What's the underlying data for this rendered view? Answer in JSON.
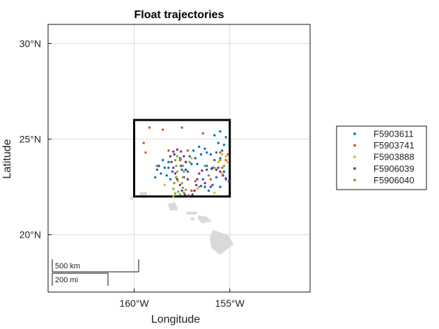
{
  "chart_data": {
    "type": "scatter",
    "title": "Float trajectories",
    "xlabel": "Longitude",
    "ylabel": "Latitude",
    "xlim": [
      -164.5,
      -150.8
    ],
    "ylim": [
      17,
      31
    ],
    "x_ticks": [
      -160,
      -155
    ],
    "x_tick_labels": [
      "160°W",
      "155°W"
    ],
    "y_ticks": [
      20,
      25,
      30
    ],
    "y_tick_labels": [
      "20°N",
      "25°N",
      "30°N"
    ],
    "grid": true,
    "legend": "right",
    "region_box": {
      "lon": [
        -160,
        -155
      ],
      "lat": [
        22,
        26
      ]
    },
    "scale_bar": {
      "km_label": "500 km",
      "mi_label": "200 mi"
    },
    "islands": [
      {
        "name": "Kauai",
        "polygon": [
          [
            -159.75,
            22.2
          ],
          [
            -159.35,
            22.25
          ],
          [
            -159.3,
            21.95
          ],
          [
            -159.6,
            21.9
          ]
        ]
      },
      {
        "name": "Niihau",
        "polygon": [
          [
            -160.2,
            22.0
          ],
          [
            -160.05,
            22.0
          ],
          [
            -160.05,
            21.8
          ],
          [
            -160.2,
            21.85
          ]
        ]
      },
      {
        "name": "Oahu",
        "polygon": [
          [
            -158.25,
            21.6
          ],
          [
            -157.85,
            21.7
          ],
          [
            -157.7,
            21.3
          ],
          [
            -158.1,
            21.25
          ]
        ]
      },
      {
        "name": "Molokai",
        "polygon": [
          [
            -157.3,
            21.2
          ],
          [
            -156.7,
            21.2
          ],
          [
            -156.75,
            21.05
          ],
          [
            -157.25,
            21.05
          ]
        ]
      },
      {
        "name": "Maui",
        "polygon": [
          [
            -156.7,
            21.0
          ],
          [
            -156.2,
            20.95
          ],
          [
            -155.95,
            20.7
          ],
          [
            -156.45,
            20.6
          ],
          [
            -156.65,
            20.8
          ]
        ]
      },
      {
        "name": "Lanai",
        "polygon": [
          [
            -157.05,
            20.9
          ],
          [
            -156.85,
            20.9
          ],
          [
            -156.85,
            20.75
          ],
          [
            -157.05,
            20.75
          ]
        ]
      },
      {
        "name": "Hawaii",
        "polygon": [
          [
            -155.9,
            20.25
          ],
          [
            -155.1,
            20.0
          ],
          [
            -154.8,
            19.5
          ],
          [
            -155.5,
            18.95
          ],
          [
            -155.95,
            19.3
          ],
          [
            -156.05,
            19.8
          ]
        ]
      }
    ],
    "series": [
      {
        "name": "F5903611",
        "color": "#0072bd",
        "points": [
          [
            -158.6,
            23.2
          ],
          [
            -158.4,
            23.5
          ],
          [
            -158.2,
            23.8
          ],
          [
            -158.5,
            23.9
          ],
          [
            -158.7,
            23.6
          ],
          [
            -158.3,
            23.1
          ],
          [
            -158.1,
            22.9
          ],
          [
            -157.8,
            23.0
          ],
          [
            -157.5,
            23.4
          ],
          [
            -157.3,
            23.8
          ],
          [
            -157.1,
            24.1
          ],
          [
            -156.9,
            24.4
          ],
          [
            -156.6,
            24.6
          ],
          [
            -156.3,
            24.5
          ],
          [
            -156.0,
            24.2
          ],
          [
            -155.8,
            23.9
          ],
          [
            -155.9,
            23.5
          ],
          [
            -156.1,
            23.1
          ],
          [
            -156.4,
            22.9
          ],
          [
            -156.3,
            22.5
          ],
          [
            -156.1,
            22.3
          ],
          [
            -155.9,
            22.6
          ],
          [
            -155.7,
            23.0
          ],
          [
            -155.6,
            23.5
          ],
          [
            -155.5,
            24.0
          ],
          [
            -155.4,
            24.4
          ],
          [
            -155.6,
            24.8
          ],
          [
            -155.8,
            25.2
          ],
          [
            -155.5,
            25.4
          ],
          [
            -155.2,
            25.1
          ],
          [
            -155.3,
            24.7
          ],
          [
            -155.7,
            24.3
          ],
          [
            -156.2,
            24.3
          ],
          [
            -156.5,
            24.2
          ],
          [
            -156.8,
            24.0
          ],
          [
            -157.0,
            23.7
          ],
          [
            -157.2,
            23.3
          ],
          [
            -157.4,
            23.0
          ],
          [
            -158.0,
            23.3
          ],
          [
            -158.9,
            23.0
          ],
          [
            -158.8,
            23.4
          ],
          [
            -157.6,
            24.0
          ],
          [
            -156.7,
            23.7
          ],
          [
            -156.2,
            23.6
          ],
          [
            -155.3,
            23.3
          ],
          [
            -155.2,
            22.9
          ],
          [
            -155.5,
            22.5
          ],
          [
            -158.2,
            23.5
          ]
        ]
      },
      {
        "name": "F5903741",
        "color": "#d95319",
        "points": [
          [
            -159.4,
            24.3
          ],
          [
            -159.2,
            25.6
          ],
          [
            -159.5,
            24.8
          ],
          [
            -158.5,
            25.5
          ],
          [
            -157.5,
            25.6
          ],
          [
            -158.2,
            24.4
          ],
          [
            -157.2,
            24.4
          ],
          [
            -156.4,
            25.3
          ],
          [
            -155.5,
            24.3
          ],
          [
            -155.1,
            24.2
          ],
          [
            -155.4,
            23.5
          ],
          [
            -156.8,
            22.8
          ],
          [
            -157.0,
            22.3
          ],
          [
            -158.8,
            23.6
          ],
          [
            -157.6,
            23.9
          ],
          [
            -156.0,
            22.9
          ],
          [
            -155.2,
            23.9
          ],
          [
            -157.9,
            24.2
          ]
        ]
      },
      {
        "name": "F5903888",
        "color": "#edb120",
        "points": [
          [
            -158.4,
            22.6
          ],
          [
            -157.0,
            24.0
          ],
          [
            -155.6,
            23.8
          ],
          [
            -155.4,
            24.2
          ],
          [
            -155.1,
            23.8
          ],
          [
            -155.2,
            24.1
          ],
          [
            -156.7,
            22.4
          ],
          [
            -155.8,
            22.2
          ],
          [
            -157.7,
            22.8
          ],
          [
            -155.4,
            23.2
          ]
        ]
      },
      {
        "name": "F5906039",
        "color": "#7e2f8e",
        "points": [
          [
            -157.4,
            23.0
          ],
          [
            -157.3,
            23.4
          ],
          [
            -157.3,
            23.8
          ],
          [
            -157.4,
            24.1
          ],
          [
            -157.55,
            24.35
          ],
          [
            -157.75,
            24.45
          ],
          [
            -157.95,
            24.35
          ],
          [
            -158.1,
            24.1
          ],
          [
            -158.05,
            23.8
          ],
          [
            -157.95,
            23.5
          ],
          [
            -157.85,
            23.2
          ],
          [
            -157.75,
            22.9
          ],
          [
            -157.6,
            22.6
          ],
          [
            -157.5,
            22.3
          ],
          [
            -157.35,
            22.1
          ],
          [
            -157.15,
            22.05
          ],
          [
            -156.95,
            22.1
          ],
          [
            -156.85,
            22.3
          ],
          [
            -156.75,
            22.6
          ],
          [
            -156.7,
            22.9
          ],
          [
            -156.6,
            23.2
          ],
          [
            -156.45,
            23.35
          ],
          [
            -156.2,
            23.4
          ],
          [
            -155.95,
            23.45
          ],
          [
            -155.7,
            23.4
          ],
          [
            -155.5,
            23.3
          ],
          [
            -155.35,
            23.1
          ],
          [
            -155.2,
            22.95
          ],
          [
            -155.05,
            22.8
          ],
          [
            -156.0,
            22.5
          ],
          [
            -156.3,
            22.7
          ],
          [
            -156.5,
            22.55
          ],
          [
            -157.2,
            22.9
          ],
          [
            -157.55,
            23.6
          ],
          [
            -157.9,
            24.2
          ]
        ]
      },
      {
        "name": "F5906040",
        "color": "#77ac30",
        "points": [
          [
            -157.4,
            22.2
          ],
          [
            -157.6,
            22.1
          ],
          [
            -157.85,
            22.15
          ],
          [
            -157.95,
            22.4
          ],
          [
            -157.9,
            22.7
          ],
          [
            -157.8,
            23.0
          ],
          [
            -157.75,
            23.3
          ],
          [
            -157.8,
            23.6
          ],
          [
            -157.85,
            23.9
          ],
          [
            -157.75,
            24.1
          ],
          [
            -157.55,
            23.95
          ],
          [
            -157.45,
            23.6
          ],
          [
            -157.4,
            23.3
          ],
          [
            -157.45,
            23.0
          ],
          [
            -157.5,
            22.7
          ],
          [
            -157.45,
            22.45
          ],
          [
            -157.3,
            22.35
          ],
          [
            -157.7,
            22.25
          ],
          [
            -157.95,
            22.0
          ],
          [
            -156.3,
            23.6
          ],
          [
            -155.8,
            23.5
          ],
          [
            -155.5,
            23.9
          ],
          [
            -155.3,
            23.6
          ],
          [
            -156.1,
            23.1
          ],
          [
            -156.6,
            22.5
          ],
          [
            -157.1,
            23.8
          ]
        ]
      }
    ]
  }
}
